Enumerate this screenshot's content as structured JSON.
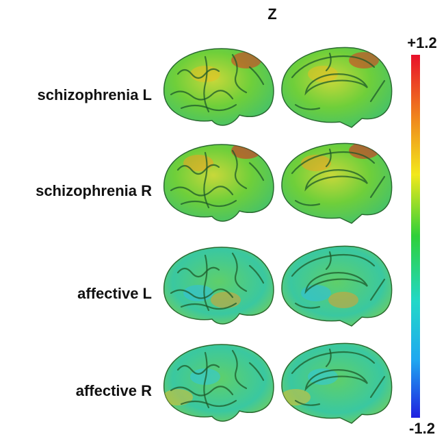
{
  "title": "Z",
  "rows": [
    {
      "label": "schizophrenia L"
    },
    {
      "label": "schizophrenia R"
    },
    {
      "label": "affective L"
    },
    {
      "label": "affective R"
    }
  ],
  "colorbar": {
    "max": "+1.2",
    "min": "-1.2"
  }
}
